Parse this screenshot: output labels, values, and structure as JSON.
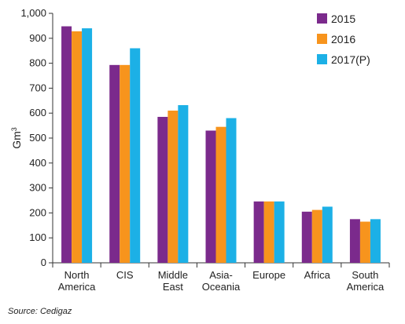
{
  "chart_data": {
    "type": "bar",
    "title": "",
    "xlabel": "",
    "ylabel": "Gm",
    "ylabel_superscript": "3",
    "ylim": [
      0,
      1000
    ],
    "yticks": [
      0,
      100,
      200,
      300,
      400,
      500,
      600,
      700,
      800,
      900,
      1000
    ],
    "ytick_labels": [
      "0",
      "100",
      "200",
      "300",
      "400",
      "500",
      "600",
      "700",
      "800",
      "900",
      "1,000"
    ],
    "grid": false,
    "legend_position": "top-right",
    "categories": [
      [
        "North",
        "America"
      ],
      [
        "CIS"
      ],
      [
        "Middle",
        "East"
      ],
      [
        "Asia-",
        "Oceania"
      ],
      [
        "Europe"
      ],
      [
        "Africa"
      ],
      [
        "South",
        "America"
      ]
    ],
    "series": [
      {
        "name": "2015",
        "color": "#7b2a8c",
        "values": [
          948,
          793,
          585,
          530,
          246,
          205,
          175
        ]
      },
      {
        "name": "2016",
        "color": "#f7941d",
        "values": [
          928,
          793,
          610,
          545,
          246,
          212,
          165
        ]
      },
      {
        "name": "2017(P)",
        "color": "#1cb0e6",
        "values": [
          940,
          860,
          632,
          580,
          246,
          225,
          175
        ]
      }
    ]
  },
  "footer": {
    "source": "Source: Cedigaz"
  }
}
